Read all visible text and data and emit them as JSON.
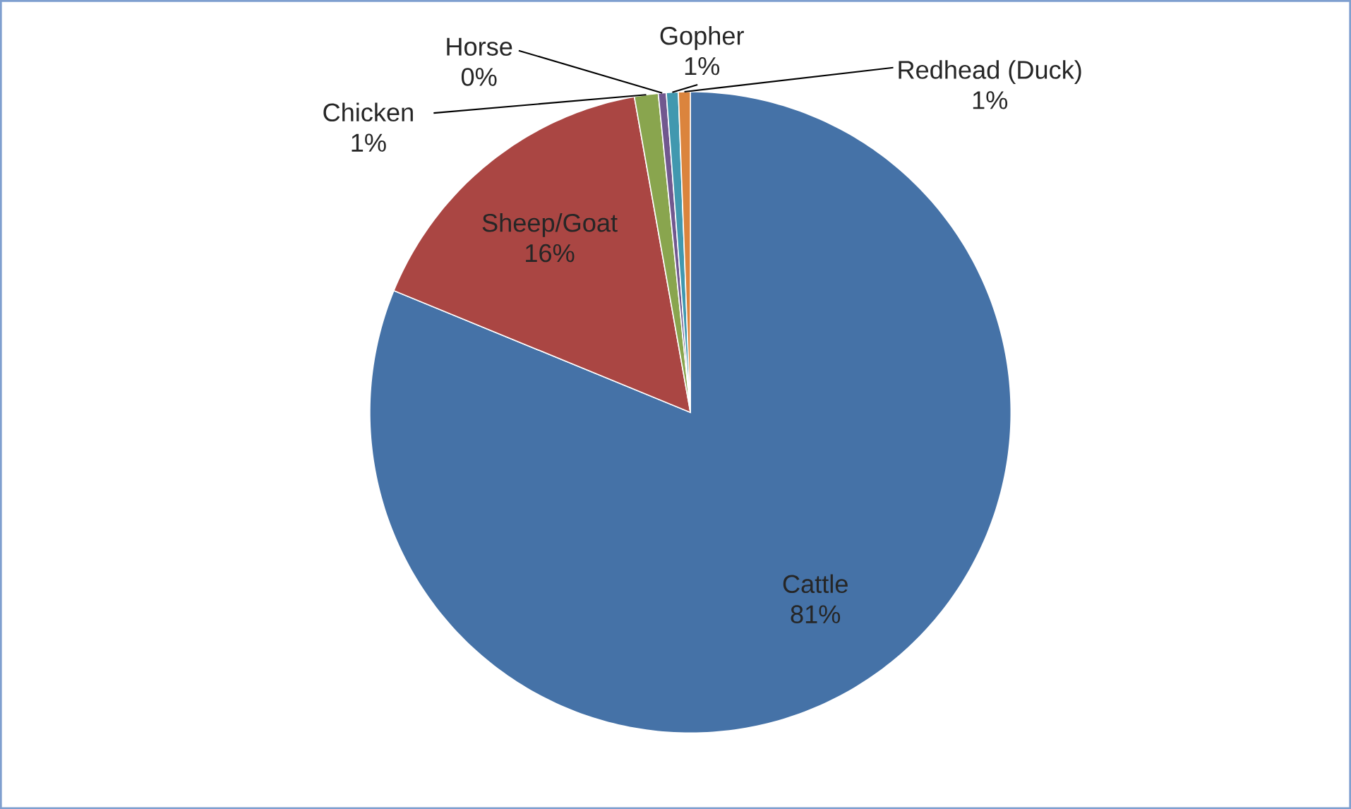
{
  "chart_data": {
    "type": "pie",
    "categories": [
      "Cattle",
      "Sheep/Goat",
      "Chicken",
      "Horse",
      "Gopher",
      "Redhead (Duck)"
    ],
    "values": [
      81.2,
      16.0,
      1.2,
      0.4,
      0.6,
      0.6
    ],
    "value_labels": [
      "81%",
      "16%",
      "1%",
      "0%",
      "1%",
      "1%"
    ],
    "colors": [
      "#4572a7",
      "#aa4643",
      "#89a54e",
      "#71588f",
      "#4198af",
      "#db843d"
    ]
  }
}
